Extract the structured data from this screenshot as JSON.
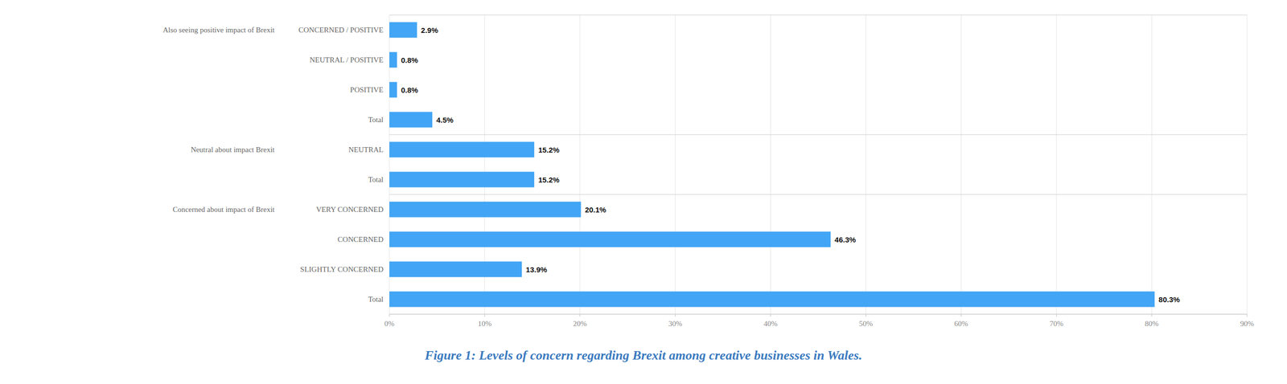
{
  "chart_data": {
    "type": "bar",
    "orientation": "horizontal",
    "title": "Figure 1: Levels of concern regarding Brexit among creative businesses in Wales.",
    "categories": [
      "CONCERNED / POSITIVE",
      "NEUTRAL / POSITIVE",
      "POSITIVE",
      "Total",
      "NEUTRAL",
      "Total",
      "VERY CONCERNED",
      "CONCERNED",
      "SLIGHTLY CONCERNED",
      "Total"
    ],
    "values": [
      2.9,
      0.8,
      0.8,
      4.5,
      15.2,
      15.2,
      20.1,
      46.3,
      13.9,
      80.3
    ],
    "value_labels": [
      "2.9%",
      "0.8%",
      "0.8%",
      "4.5%",
      "15.2%",
      "15.2%",
      "20.1%",
      "46.3%",
      "13.9%",
      "80.3%"
    ],
    "data_labels": true,
    "color": "#42A5F5",
    "xlim": [
      0,
      90
    ],
    "xticks": [
      {
        "value": 0,
        "label": "0%"
      },
      {
        "value": 10,
        "label": "10%"
      },
      {
        "value": 20,
        "label": "20%"
      },
      {
        "value": 30,
        "label": "30%"
      },
      {
        "value": 40,
        "label": "40%"
      },
      {
        "value": 50,
        "label": "50%"
      },
      {
        "value": 60,
        "label": "60%"
      },
      {
        "value": 70,
        "label": "70%"
      },
      {
        "value": 80,
        "label": "80%"
      },
      {
        "value": 90,
        "label": "90%"
      }
    ],
    "grid": true,
    "annotations": [
      {
        "text": "Also seeing positive impact of Brexit",
        "row": 0
      },
      {
        "text": "Neutral about impact Brexit",
        "row": 4
      },
      {
        "text": "Concerned about impact of Brexit",
        "row": 6
      }
    ]
  }
}
